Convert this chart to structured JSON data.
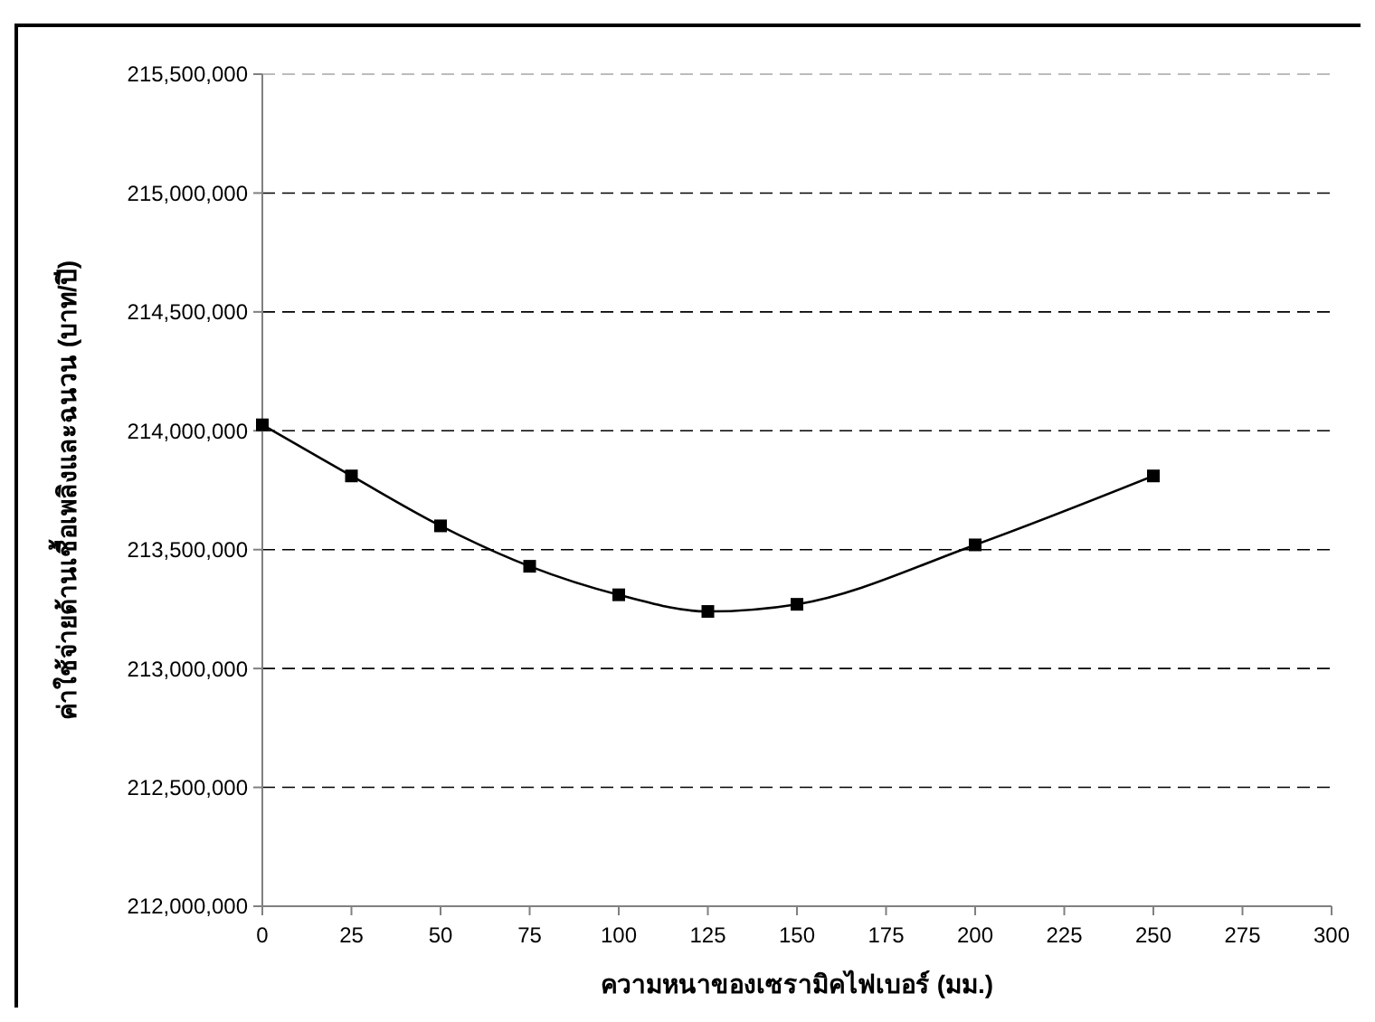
{
  "chart_data": {
    "type": "line",
    "xlabel": "ความหนาของเซรามิคไฟเบอร์ (มม.)",
    "ylabel": "ค่าใช้จ่ายด้านเชื้อเพลิงและฉนวน (บาท/ปี)",
    "x": [
      0,
      25,
      50,
      75,
      100,
      125,
      150,
      200,
      250
    ],
    "series": [
      {
        "color": "#000000",
        "values": [
          214025000,
          213810000,
          213600000,
          213430000,
          213310000,
          213240000,
          213270000,
          213520000,
          213810000
        ]
      }
    ],
    "xlim": [
      0,
      300
    ],
    "xticks": [
      0,
      25,
      50,
      75,
      100,
      125,
      150,
      175,
      200,
      225,
      250,
      275,
      300
    ],
    "ylim": [
      212000000,
      215500000
    ],
    "yticks": [
      {
        "value": 212000000,
        "label": "212,000,000"
      },
      {
        "value": 212500000,
        "label": "212,500,000"
      },
      {
        "value": 213000000,
        "label": "213,000,000"
      },
      {
        "value": 213500000,
        "label": "213,500,000"
      },
      {
        "value": 214000000,
        "label": "214,000,000"
      },
      {
        "value": 214500000,
        "label": "214,500,000"
      },
      {
        "value": 215000000,
        "label": "215,000,000"
      },
      {
        "value": 215500000,
        "label": "215,500,000"
      }
    ],
    "grid": "y",
    "marker": "square",
    "line_style": "solid"
  }
}
